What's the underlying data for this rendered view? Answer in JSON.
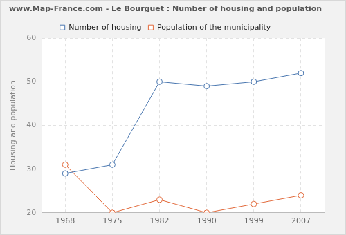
{
  "chart_data": {
    "type": "line",
    "title": "www.Map-France.com - Le Bourguet : Number of housing and population",
    "y_label": "Housing and population",
    "categories": [
      "1968",
      "1975",
      "1982",
      "1990",
      "1999",
      "2007"
    ],
    "series": [
      {
        "name": "Number of housing",
        "color": "#4a77b0",
        "values": [
          29,
          31,
          50,
          49,
          50,
          52
        ],
        "marker": "circle",
        "line_style": "solid"
      },
      {
        "name": "Population of the municipality",
        "color": "#e2693a",
        "values": [
          31,
          20,
          23,
          20,
          22,
          24
        ],
        "marker": "circle",
        "line_style": "solid"
      }
    ],
    "ylim": [
      20,
      60
    ],
    "yticks": [
      20,
      30,
      40,
      50,
      60
    ],
    "grid": true,
    "legend": "top"
  }
}
